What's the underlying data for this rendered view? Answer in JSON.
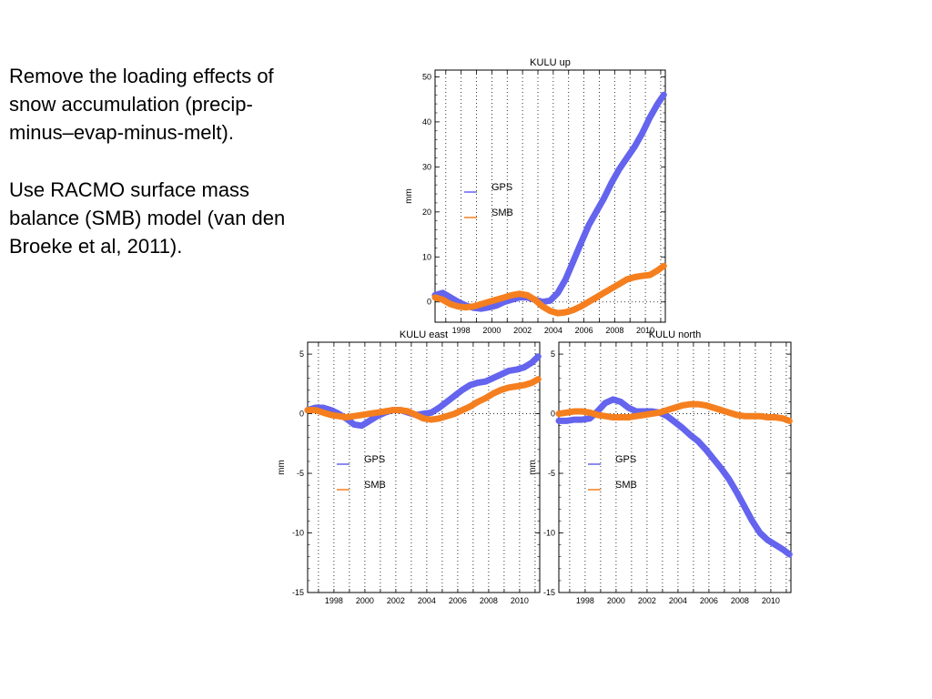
{
  "slide": {
    "paragraphs": [
      "Remove the loading effects of\nsnow accumulation (precip-\nminus–evap-minus-melt).",
      "Use RACMO surface mass\nbalance (SMB) model (van den\nBroeke et al, 2011)."
    ]
  },
  "colors": {
    "gps": "#6464ee",
    "smb": "#f57f1e"
  },
  "chart_data": [
    {
      "type": "line",
      "title": "KULU up",
      "ylabel": "mm",
      "xlim": [
        1996.3,
        2011.3
      ],
      "ylim": [
        -4.5,
        51.5
      ],
      "yticks": [
        0,
        10,
        20,
        30,
        40,
        50
      ],
      "xticks": [
        1998,
        2000,
        2002,
        2004,
        2006,
        2008,
        2010
      ],
      "legend": "center-left",
      "series": [
        {
          "name": "GPS",
          "color": "#6464ee",
          "x": [
            1996.3,
            1996.8,
            1997.3,
            1997.8,
            1998.3,
            1998.8,
            1999.3,
            1999.8,
            2000.3,
            2000.8,
            2001.3,
            2001.8,
            2002.3,
            2002.8,
            2003.3,
            2003.8,
            2004.3,
            2004.8,
            2005.3,
            2005.8,
            2006.3,
            2006.8,
            2007.3,
            2007.8,
            2008.3,
            2008.8,
            2009.3,
            2009.8,
            2010.3,
            2010.8,
            2011.2
          ],
          "y": [
            1.5,
            2.0,
            1.0,
            0.0,
            -0.8,
            -1.3,
            -1.5,
            -1.2,
            -0.8,
            0.0,
            0.5,
            1.0,
            1.0,
            0.5,
            0.0,
            0.3,
            2.0,
            5.0,
            9.0,
            13.0,
            17.0,
            20.0,
            23.0,
            26.5,
            29.5,
            32.0,
            34.5,
            37.5,
            41.0,
            44.0,
            46.0
          ]
        },
        {
          "name": "SMB",
          "color": "#f57f1e",
          "x": [
            1996.3,
            1996.8,
            1997.3,
            1997.8,
            1998.3,
            1998.8,
            1999.3,
            1999.8,
            2000.3,
            2000.8,
            2001.3,
            2001.8,
            2002.3,
            2002.8,
            2003.3,
            2003.8,
            2004.3,
            2004.8,
            2005.3,
            2005.8,
            2006.3,
            2006.8,
            2007.3,
            2007.8,
            2008.3,
            2008.8,
            2009.3,
            2009.8,
            2010.3,
            2010.8,
            2011.2
          ],
          "y": [
            1.0,
            0.5,
            -0.5,
            -1.0,
            -1.2,
            -1.0,
            -0.5,
            0.0,
            0.5,
            1.0,
            1.5,
            1.8,
            1.5,
            0.5,
            -1.0,
            -2.0,
            -2.5,
            -2.3,
            -1.8,
            -1.0,
            0.0,
            1.0,
            2.0,
            3.0,
            4.0,
            5.0,
            5.5,
            5.8,
            6.0,
            7.0,
            8.0
          ]
        }
      ]
    },
    {
      "type": "line",
      "title": "KULU east",
      "ylabel": "mm",
      "xlim": [
        1996.3,
        2011.3
      ],
      "ylim": [
        -15,
        6
      ],
      "yticks": [
        5,
        0,
        -5,
        -10,
        -15
      ],
      "xticks": [
        1998,
        2000,
        2002,
        2004,
        2006,
        2008,
        2010
      ],
      "legend": "center-left",
      "series": [
        {
          "name": "GPS",
          "color": "#6464ee",
          "x": [
            1996.3,
            1996.8,
            1997.3,
            1997.8,
            1998.3,
            1998.8,
            1999.3,
            1999.8,
            2000.3,
            2000.8,
            2001.3,
            2001.8,
            2002.3,
            2002.8,
            2003.3,
            2003.8,
            2004.3,
            2004.8,
            2005.3,
            2005.8,
            2006.3,
            2006.8,
            2007.3,
            2007.8,
            2008.3,
            2008.8,
            2009.3,
            2009.8,
            2010.3,
            2010.8,
            2011.2
          ],
          "y": [
            0.3,
            0.5,
            0.5,
            0.3,
            0.0,
            -0.4,
            -0.9,
            -1.0,
            -0.6,
            -0.2,
            0.1,
            0.3,
            0.3,
            0.1,
            -0.1,
            0.0,
            0.1,
            0.5,
            1.0,
            1.5,
            2.0,
            2.4,
            2.6,
            2.7,
            3.0,
            3.3,
            3.6,
            3.7,
            3.9,
            4.3,
            4.8
          ]
        },
        {
          "name": "SMB",
          "color": "#f57f1e",
          "x": [
            1996.3,
            1996.8,
            1997.3,
            1997.8,
            1998.3,
            1998.8,
            1999.3,
            1999.8,
            2000.3,
            2000.8,
            2001.3,
            2001.8,
            2002.3,
            2002.8,
            2003.3,
            2003.8,
            2004.3,
            2004.8,
            2005.3,
            2005.8,
            2006.3,
            2006.8,
            2007.3,
            2007.8,
            2008.3,
            2008.8,
            2009.3,
            2009.8,
            2010.3,
            2010.8,
            2011.2
          ],
          "y": [
            0.3,
            0.3,
            0.1,
            -0.1,
            -0.2,
            -0.3,
            -0.2,
            -0.1,
            0.0,
            0.1,
            0.2,
            0.3,
            0.3,
            0.2,
            -0.1,
            -0.4,
            -0.5,
            -0.4,
            -0.2,
            0.0,
            0.3,
            0.6,
            1.0,
            1.3,
            1.7,
            2.0,
            2.2,
            2.3,
            2.4,
            2.6,
            2.9
          ]
        }
      ]
    },
    {
      "type": "line",
      "title": "KULU north",
      "ylabel": "mm",
      "xlim": [
        1996.3,
        2011.3
      ],
      "ylim": [
        -15,
        6
      ],
      "yticks": [
        5,
        0,
        -5,
        -10,
        -15
      ],
      "xticks": [
        1998,
        2000,
        2002,
        2004,
        2006,
        2008,
        2010
      ],
      "legend": "center-left",
      "series": [
        {
          "name": "GPS",
          "color": "#6464ee",
          "x": [
            1996.3,
            1996.8,
            1997.3,
            1997.8,
            1998.3,
            1998.8,
            1999.3,
            1999.8,
            2000.3,
            2000.8,
            2001.3,
            2001.8,
            2002.3,
            2002.8,
            2003.3,
            2003.8,
            2004.3,
            2004.8,
            2005.3,
            2005.8,
            2006.3,
            2006.8,
            2007.3,
            2007.8,
            2008.3,
            2008.8,
            2009.3,
            2009.8,
            2010.3,
            2010.8,
            2011.2
          ],
          "y": [
            -0.6,
            -0.6,
            -0.5,
            -0.5,
            -0.4,
            0.2,
            0.9,
            1.2,
            1.0,
            0.5,
            0.2,
            0.2,
            0.2,
            0.1,
            -0.2,
            -0.7,
            -1.2,
            -1.8,
            -2.3,
            -3.0,
            -3.8,
            -4.6,
            -5.5,
            -6.6,
            -7.8,
            -9.0,
            -10.0,
            -10.6,
            -11.0,
            -11.4,
            -11.8
          ]
        },
        {
          "name": "SMB",
          "color": "#f57f1e",
          "x": [
            1996.3,
            1996.8,
            1997.3,
            1997.8,
            1998.3,
            1998.8,
            1999.3,
            1999.8,
            2000.3,
            2000.8,
            2001.3,
            2001.8,
            2002.3,
            2002.8,
            2003.3,
            2003.8,
            2004.3,
            2004.8,
            2005.3,
            2005.8,
            2006.3,
            2006.8,
            2007.3,
            2007.8,
            2008.3,
            2008.8,
            2009.3,
            2009.8,
            2010.3,
            2010.8,
            2011.2
          ],
          "y": [
            0.0,
            0.1,
            0.2,
            0.2,
            0.1,
            -0.1,
            -0.2,
            -0.3,
            -0.3,
            -0.3,
            -0.2,
            -0.1,
            0.0,
            0.1,
            0.3,
            0.5,
            0.7,
            0.8,
            0.8,
            0.7,
            0.5,
            0.3,
            0.1,
            -0.1,
            -0.2,
            -0.2,
            -0.2,
            -0.3,
            -0.3,
            -0.4,
            -0.6
          ]
        }
      ]
    }
  ]
}
